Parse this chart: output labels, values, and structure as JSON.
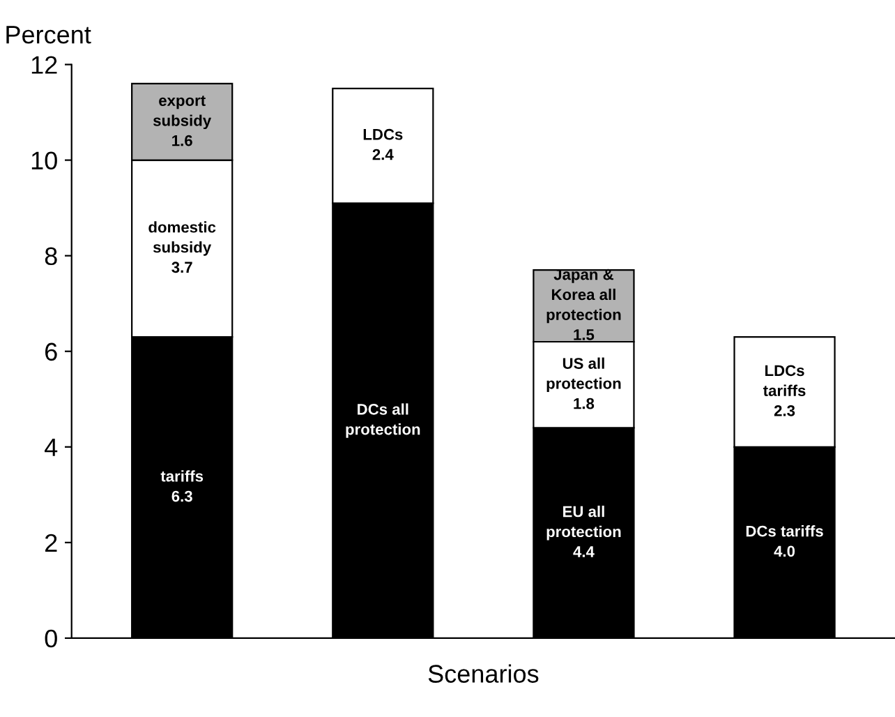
{
  "chart_data": {
    "type": "bar",
    "stacked": true,
    "xlabel": "Scenarios",
    "ylabel": "Percent",
    "categories": [
      null,
      null,
      null,
      null
    ],
    "ylim": [
      0,
      12
    ],
    "yticks": [
      0,
      2,
      4,
      6,
      8,
      10,
      12
    ],
    "grid": false,
    "legend": false,
    "series": [
      {
        "color": "#000000",
        "values": [
          6.3,
          9.1,
          4.4,
          4.0
        ],
        "value_labels": [
          "tariffs\n6.3",
          "DCs all\nprotection",
          "EU all\nprotection\n4.4",
          "DCs tariffs\n4.0"
        ]
      },
      {
        "color": "#ffffff",
        "values": [
          3.7,
          2.4,
          1.8,
          2.3
        ],
        "value_labels": [
          "domestic\nsubsidy\n3.7",
          "LDCs\n2.4",
          "US all\nprotection\n1.8",
          "LDCs\ntariffs\n2.3"
        ]
      },
      {
        "color": "#b3b3b3",
        "values": [
          1.6,
          null,
          1.5,
          null
        ],
        "value_labels": [
          "export\nsubsidy\n1.6",
          null,
          "Japan &\nKorea all\nprotection\n1.5",
          null
        ]
      }
    ]
  }
}
